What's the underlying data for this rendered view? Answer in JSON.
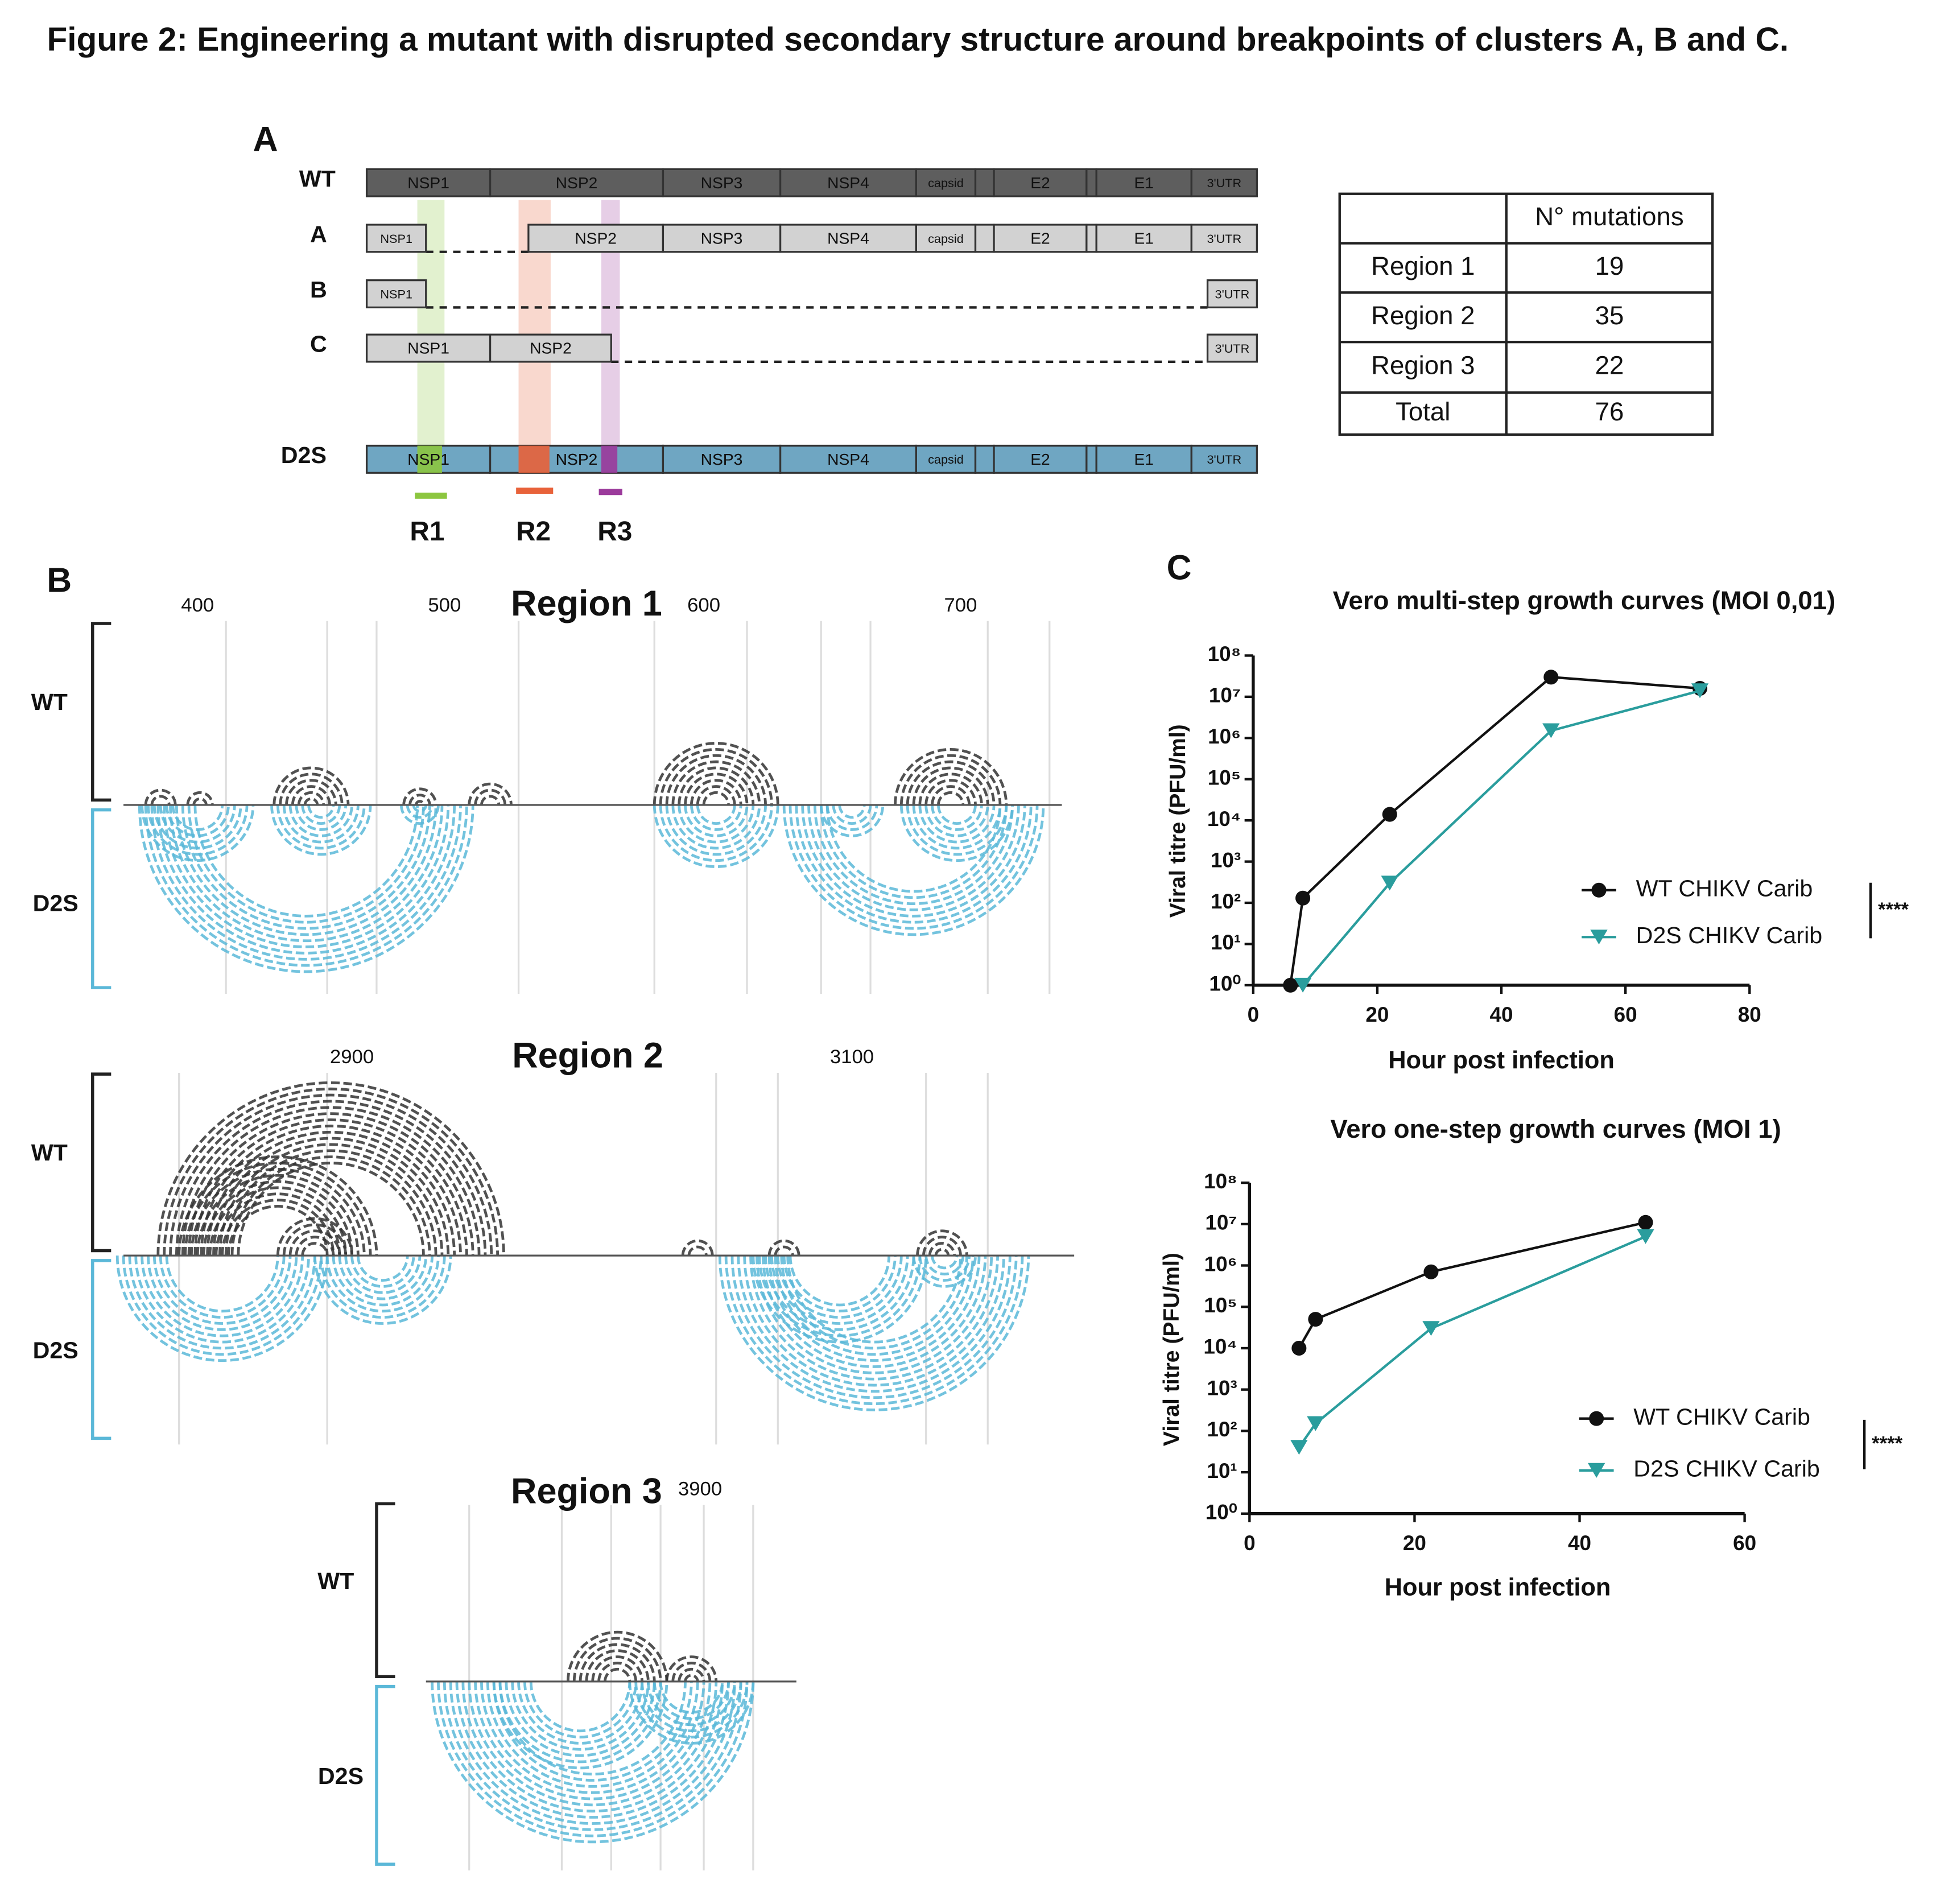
{
  "title": "Figure 2: Engineering a mutant with disrupted secondary structure around breakpoints of clusters A, B and C.",
  "panel_a": {
    "label": "A",
    "rows": [
      {
        "name": "WT",
        "color": "#222222",
        "fill": "#5e5e5e",
        "segments": [
          "NSP1",
          "NSP2",
          "NSP3",
          "NSP4",
          "capsid",
          "E2",
          "E1",
          "3'UTR"
        ]
      },
      {
        "name": "A",
        "color": "#c0392b",
        "fill": "#d2d2d2",
        "segments": [
          "NSP1",
          "NSP2",
          "NSP3",
          "NSP4",
          "capsid",
          "E2",
          "E1",
          "3'UTR"
        ]
      },
      {
        "name": "B",
        "color": "#3a7dc0",
        "fill": "#d2d2d2",
        "segments": [
          "NSP1",
          "3'UTR"
        ]
      },
      {
        "name": "C",
        "color": "#e08030",
        "fill": "#d2d2d2",
        "segments": [
          "NSP1",
          "NSP2",
          "3'UTR"
        ]
      },
      {
        "name": "D2S",
        "color": "#222222",
        "fill": "#6fa6c2",
        "segments": [
          "NSP1",
          "NSP2",
          "NSP3",
          "NSP4",
          "capsid",
          "E2",
          "E1",
          "3'UTR"
        ]
      }
    ],
    "regions": [
      {
        "label": "R1",
        "color": "#8cc63f"
      },
      {
        "label": "R2",
        "color": "#e8623a"
      },
      {
        "label": "R3",
        "color": "#9b3a9b"
      }
    ]
  },
  "table": {
    "header": "N° mutations",
    "rows": [
      {
        "label": "Region 1",
        "value": 19,
        "color": "#8cc63f"
      },
      {
        "label": "Region 2",
        "value": 35,
        "color": "#e8623a"
      },
      {
        "label": "Region 3",
        "value": 22,
        "color": "#9b3a9b"
      },
      {
        "label": "Total",
        "value": 76,
        "color": "#222222"
      }
    ]
  },
  "panel_b": {
    "label": "B",
    "wt_label": "WT",
    "d2s_label": "D2S",
    "wt_color": "#333333",
    "d2s_color": "#5bb8d8",
    "regions": [
      {
        "title": "Region 1",
        "color": "#8cc63f",
        "ticks": [
          400,
          500,
          600,
          700
        ]
      },
      {
        "title": "Region 2",
        "color": "#e8623a",
        "ticks": [
          2900,
          3100
        ]
      },
      {
        "title": "Region 3",
        "color": "#9b3a9b",
        "ticks": [
          3900
        ]
      }
    ]
  },
  "panel_c": {
    "label": "C"
  },
  "chart_data": [
    {
      "type": "line",
      "title": "Vero multi-step growth curves (MOI 0,01)",
      "x_label": "Hour post infection",
      "y_label": "Viral titre (PFU/ml)",
      "log_y": true,
      "xlim": [
        0,
        80
      ],
      "xticks": [
        0,
        20,
        40,
        60,
        80
      ],
      "ylim": [
        1,
        100000000
      ],
      "yticks": [
        {
          "value": 1,
          "label": "10⁰"
        },
        {
          "value": 10,
          "label": "10¹"
        },
        {
          "value": 100,
          "label": "10²"
        },
        {
          "value": 1000,
          "label": "10³"
        },
        {
          "value": 10000,
          "label": "10⁴"
        },
        {
          "value": 100000,
          "label": "10⁵"
        },
        {
          "value": 1000000,
          "label": "10⁶"
        },
        {
          "value": 10000000,
          "label": "10⁷"
        },
        {
          "value": 100000000,
          "label": "10⁸"
        }
      ],
      "annotation": "****",
      "series": [
        {
          "name": "WT CHIKV Carib",
          "color": "#111111",
          "marker": "circle",
          "x": [
            6,
            8,
            22,
            48,
            72
          ],
          "values": [
            1,
            130,
            14000,
            30000000,
            16000000
          ]
        },
        {
          "name": "D2S CHIKV Carib",
          "color": "#2a9d9d",
          "marker": "triangle",
          "x": [
            8,
            22,
            48,
            72
          ],
          "values": [
            1,
            300,
            1500000,
            14000000
          ]
        }
      ]
    },
    {
      "type": "line",
      "title": "Vero one-step growth curves (MOI 1)",
      "x_label": "Hour post infection",
      "y_label": "Viral titre (PFU/ml)",
      "log_y": true,
      "xlim": [
        0,
        60
      ],
      "xticks": [
        0,
        20,
        40,
        60
      ],
      "ylim": [
        1,
        100000000
      ],
      "yticks": [
        {
          "value": 1,
          "label": "10⁰"
        },
        {
          "value": 10,
          "label": "10¹"
        },
        {
          "value": 100,
          "label": "10²"
        },
        {
          "value": 1000,
          "label": "10³"
        },
        {
          "value": 10000,
          "label": "10⁴"
        },
        {
          "value": 100000,
          "label": "10⁵"
        },
        {
          "value": 1000000,
          "label": "10⁶"
        },
        {
          "value": 10000000,
          "label": "10⁷"
        },
        {
          "value": 100000000,
          "label": "10⁸"
        }
      ],
      "annotation": "****",
      "series": [
        {
          "name": "WT CHIKV Carib",
          "color": "#111111",
          "marker": "circle",
          "x": [
            6,
            8,
            22,
            48
          ],
          "values": [
            10000,
            50000,
            700000,
            11000000
          ]
        },
        {
          "name": "D2S CHIKV Carib",
          "color": "#2a9d9d",
          "marker": "triangle",
          "x": [
            6,
            8,
            22,
            48
          ],
          "values": [
            40,
            150,
            30000,
            5000000
          ]
        }
      ]
    }
  ]
}
